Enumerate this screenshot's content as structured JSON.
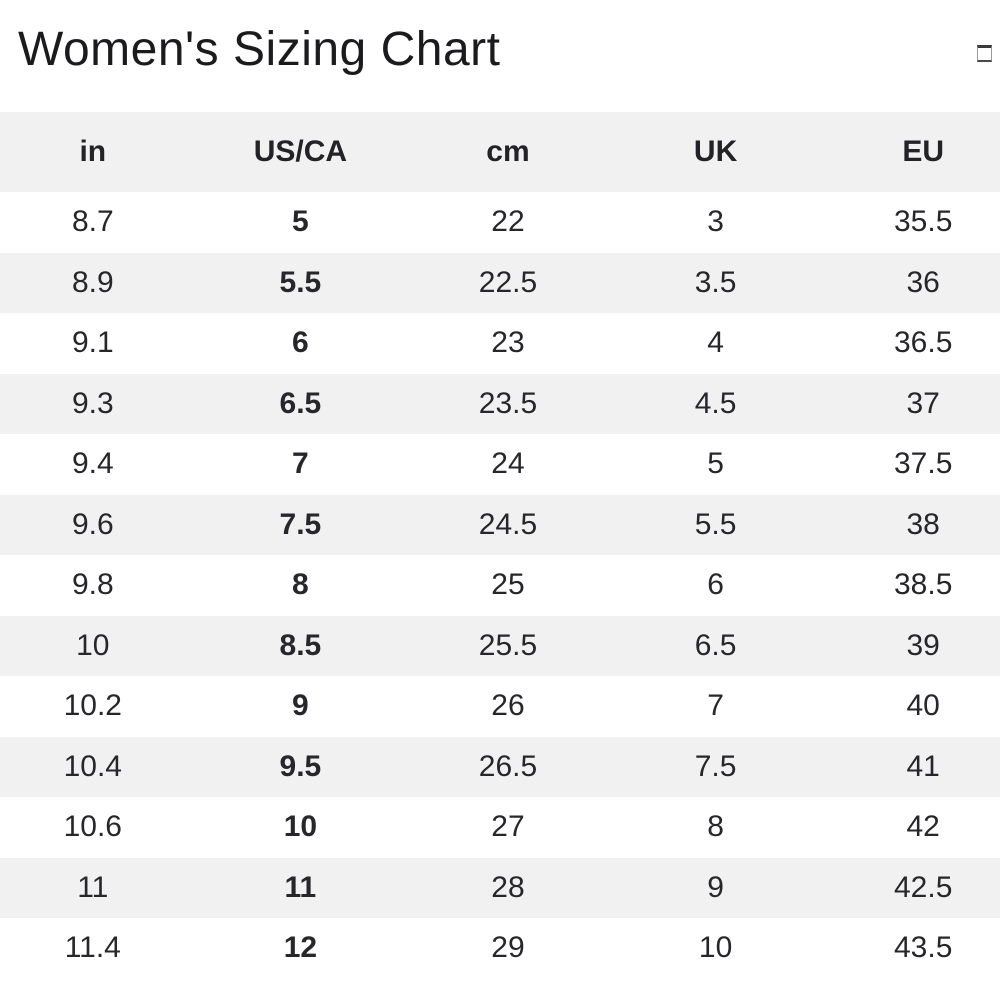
{
  "header": {
    "title": "Women's Sizing Chart",
    "icon": "window-outline-icon"
  },
  "table": {
    "columns": [
      "in",
      "US/CA",
      "cm",
      "UK",
      "EU"
    ],
    "bold_column": "US/CA",
    "rows": [
      [
        "8.7",
        "5",
        "22",
        "3",
        "35.5"
      ],
      [
        "8.9",
        "5.5",
        "22.5",
        "3.5",
        "36"
      ],
      [
        "9.1",
        "6",
        "23",
        "4",
        "36.5"
      ],
      [
        "9.3",
        "6.5",
        "23.5",
        "4.5",
        "37"
      ],
      [
        "9.4",
        "7",
        "24",
        "5",
        "37.5"
      ],
      [
        "9.6",
        "7.5",
        "24.5",
        "5.5",
        "38"
      ],
      [
        "9.8",
        "8",
        "25",
        "6",
        "38.5"
      ],
      [
        "10",
        "8.5",
        "25.5",
        "6.5",
        "39"
      ],
      [
        "10.2",
        "9",
        "26",
        "7",
        "40"
      ],
      [
        "10.4",
        "9.5",
        "26.5",
        "7.5",
        "41"
      ],
      [
        "10.6",
        "10",
        "27",
        "8",
        "42"
      ],
      [
        "11",
        "11",
        "28",
        "9",
        "42.5"
      ],
      [
        "11.4",
        "12",
        "29",
        "10",
        "43.5"
      ]
    ],
    "colors": {
      "stripe": "#f1f1f1",
      "row_white": "#ffffff",
      "text": "#27272b",
      "title": "#1b1b1d"
    }
  },
  "chart_data": {
    "type": "table",
    "title": "Women's Sizing Chart",
    "columns": [
      "in",
      "US/CA",
      "cm",
      "UK",
      "EU"
    ],
    "rows": [
      [
        8.7,
        5,
        22,
        3,
        35.5
      ],
      [
        8.9,
        5.5,
        22.5,
        3.5,
        36
      ],
      [
        9.1,
        6,
        23,
        4,
        36.5
      ],
      [
        9.3,
        6.5,
        23.5,
        4.5,
        37
      ],
      [
        9.4,
        7,
        24,
        5,
        37.5
      ],
      [
        9.6,
        7.5,
        24.5,
        5.5,
        38
      ],
      [
        9.8,
        8,
        25,
        6,
        38.5
      ],
      [
        10,
        8.5,
        25.5,
        6.5,
        39
      ],
      [
        10.2,
        9,
        26,
        7,
        40
      ],
      [
        10.4,
        9.5,
        26.5,
        7.5,
        41
      ],
      [
        10.6,
        10,
        27,
        8,
        42
      ],
      [
        11,
        11,
        28,
        9,
        42.5
      ],
      [
        11.4,
        12,
        29,
        10,
        43.5
      ]
    ]
  }
}
